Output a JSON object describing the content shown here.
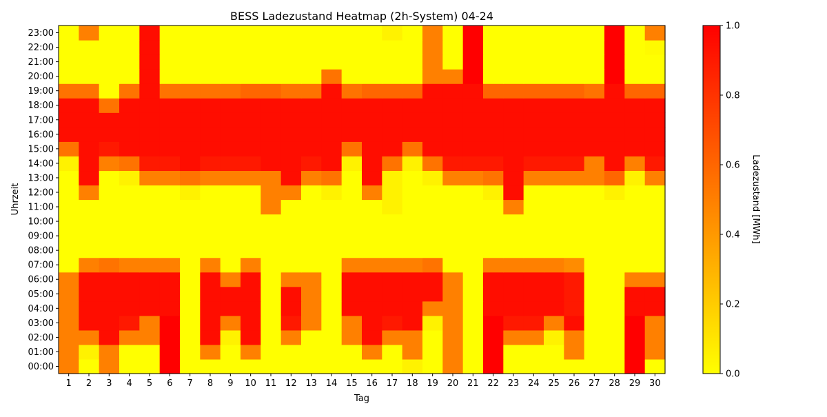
{
  "chart_data": {
    "type": "heatmap",
    "title": "BESS Ladezustand Heatmap (2h-System) 04-24",
    "xlabel": "Tag",
    "ylabel": "Uhrzeit",
    "colorbar_label": "Ladezustand [MWh]",
    "x": [
      "1",
      "2",
      "3",
      "4",
      "5",
      "6",
      "7",
      "8",
      "9",
      "10",
      "11",
      "12",
      "13",
      "14",
      "15",
      "16",
      "17",
      "18",
      "19",
      "20",
      "21",
      "22",
      "23",
      "24",
      "25",
      "26",
      "27",
      "28",
      "29",
      "30"
    ],
    "y": [
      "00:00",
      "01:00",
      "02:00",
      "03:00",
      "04:00",
      "05:00",
      "06:00",
      "07:00",
      "08:00",
      "09:00",
      "10:00",
      "11:00",
      "12:00",
      "13:00",
      "14:00",
      "15:00",
      "16:00",
      "17:00",
      "18:00",
      "19:00",
      "20:00",
      "21:00",
      "22:00",
      "23:00"
    ],
    "zlim": [
      0,
      1
    ],
    "colorbar_ticks": [
      "0.0",
      "0.2",
      "0.4",
      "0.6",
      "0.8",
      "1.0"
    ],
    "colormap": [
      "#ffff00",
      "#ff0000"
    ],
    "z": [
      [
        0.5,
        0.0,
        0.5,
        0.0,
        0.0,
        1.0,
        0.0,
        0.0,
        0.0,
        0.0,
        0.0,
        0.0,
        0.0,
        0.0,
        0.0,
        0.0,
        0.0,
        0.05,
        0.0,
        0.5,
        0.0,
        1.0,
        0.0,
        0.0,
        0.0,
        0.0,
        0.0,
        0.0,
        1.0,
        0.0
      ],
      [
        0.5,
        0.05,
        0.5,
        0.0,
        0.0,
        1.0,
        0.0,
        0.5,
        0.0,
        0.5,
        0.0,
        0.0,
        0.0,
        0.0,
        0.0,
        0.5,
        0.0,
        0.5,
        0.0,
        0.5,
        0.0,
        1.0,
        0.0,
        0.0,
        0.0,
        0.5,
        0.0,
        0.0,
        1.0,
        0.5
      ],
      [
        0.5,
        0.5,
        0.95,
        0.5,
        0.5,
        1.0,
        0.0,
        0.95,
        0.05,
        0.95,
        0.0,
        0.5,
        0.0,
        0.0,
        0.5,
        0.95,
        0.5,
        0.5,
        0.0,
        0.5,
        0.0,
        1.0,
        0.5,
        0.5,
        0.05,
        0.5,
        0.0,
        0.0,
        1.0,
        0.5
      ],
      [
        0.5,
        0.95,
        0.95,
        0.9,
        0.5,
        1.0,
        0.0,
        0.95,
        0.5,
        0.95,
        0.0,
        0.9,
        0.5,
        0.0,
        0.5,
        0.95,
        0.9,
        0.95,
        0.05,
        0.5,
        0.0,
        1.0,
        0.9,
        0.9,
        0.5,
        0.95,
        0.0,
        0.0,
        1.0,
        0.5
      ],
      [
        0.5,
        0.95,
        0.95,
        0.95,
        0.95,
        0.95,
        0.0,
        0.95,
        0.95,
        0.95,
        0.0,
        0.95,
        0.5,
        0.0,
        0.95,
        0.95,
        0.95,
        0.95,
        0.5,
        0.5,
        0.0,
        0.95,
        0.95,
        0.95,
        0.95,
        0.9,
        0.0,
        0.0,
        0.95,
        0.95
      ],
      [
        0.5,
        0.95,
        0.95,
        0.95,
        0.95,
        0.95,
        0.0,
        0.95,
        0.95,
        0.95,
        0.0,
        0.95,
        0.5,
        0.0,
        0.95,
        0.95,
        0.95,
        0.95,
        0.95,
        0.5,
        0.0,
        0.95,
        0.95,
        0.95,
        0.95,
        0.9,
        0.0,
        0.0,
        0.95,
        0.95
      ],
      [
        0.5,
        0.95,
        0.95,
        0.95,
        0.95,
        0.95,
        0.0,
        0.95,
        0.5,
        0.95,
        0.0,
        0.5,
        0.5,
        0.0,
        0.95,
        0.95,
        0.95,
        0.95,
        0.95,
        0.5,
        0.0,
        0.95,
        0.95,
        0.95,
        0.95,
        0.9,
        0.0,
        0.0,
        0.5,
        0.5
      ],
      [
        0.0,
        0.5,
        0.55,
        0.5,
        0.5,
        0.5,
        0.0,
        0.5,
        0.0,
        0.5,
        0.0,
        0.0,
        0.0,
        0.0,
        0.5,
        0.5,
        0.5,
        0.5,
        0.55,
        0.0,
        0.0,
        0.5,
        0.5,
        0.5,
        0.5,
        0.45,
        0.0,
        0.0,
        0.0,
        0.0
      ],
      [
        0.0,
        0.0,
        0.0,
        0.0,
        0.0,
        0.0,
        0.0,
        0.0,
        0.0,
        0.0,
        0.0,
        0.0,
        0.0,
        0.0,
        0.0,
        0.0,
        0.0,
        0.0,
        0.0,
        0.0,
        0.0,
        0.0,
        0.0,
        0.0,
        0.0,
        0.0,
        0.0,
        0.0,
        0.0,
        0.0
      ],
      [
        0.0,
        0.0,
        0.0,
        0.0,
        0.0,
        0.0,
        0.0,
        0.0,
        0.0,
        0.0,
        0.0,
        0.0,
        0.0,
        0.0,
        0.0,
        0.0,
        0.0,
        0.0,
        0.0,
        0.0,
        0.0,
        0.0,
        0.0,
        0.0,
        0.0,
        0.0,
        0.0,
        0.0,
        0.0,
        0.0
      ],
      [
        0.0,
        0.0,
        0.0,
        0.0,
        0.0,
        0.0,
        0.0,
        0.0,
        0.0,
        0.0,
        0.0,
        0.0,
        0.0,
        0.0,
        0.0,
        0.0,
        0.0,
        0.0,
        0.0,
        0.0,
        0.0,
        0.0,
        0.0,
        0.0,
        0.0,
        0.0,
        0.0,
        0.0,
        0.0,
        0.0
      ],
      [
        0.0,
        0.0,
        0.0,
        0.0,
        0.0,
        0.0,
        0.0,
        0.0,
        0.0,
        0.0,
        0.5,
        0.0,
        0.0,
        0.0,
        0.0,
        0.0,
        0.05,
        0.0,
        0.0,
        0.0,
        0.0,
        0.0,
        0.5,
        0.0,
        0.0,
        0.0,
        0.0,
        0.0,
        0.0,
        0.0
      ],
      [
        0.0,
        0.5,
        0.0,
        0.0,
        0.0,
        0.0,
        0.05,
        0.0,
        0.0,
        0.0,
        0.5,
        0.5,
        0.0,
        0.05,
        0.0,
        0.5,
        0.05,
        0.0,
        0.0,
        0.0,
        0.0,
        0.05,
        0.95,
        0.0,
        0.0,
        0.0,
        0.0,
        0.05,
        0.0,
        0.0
      ],
      [
        0.0,
        0.95,
        0.0,
        0.05,
        0.5,
        0.5,
        0.55,
        0.5,
        0.5,
        0.5,
        0.5,
        0.95,
        0.5,
        0.55,
        0.0,
        0.95,
        0.05,
        0.0,
        0.05,
        0.5,
        0.5,
        0.55,
        0.95,
        0.5,
        0.5,
        0.5,
        0.5,
        0.6,
        0.05,
        0.5
      ],
      [
        0.05,
        0.95,
        0.5,
        0.55,
        0.9,
        0.9,
        0.95,
        0.9,
        0.9,
        0.9,
        0.95,
        0.95,
        0.9,
        0.95,
        0.05,
        0.95,
        0.55,
        0.05,
        0.55,
        0.9,
        0.9,
        0.9,
        0.95,
        0.9,
        0.9,
        0.9,
        0.5,
        0.95,
        0.5,
        0.9
      ],
      [
        0.55,
        0.95,
        0.9,
        0.95,
        0.95,
        0.95,
        0.95,
        0.95,
        0.95,
        0.95,
        0.95,
        0.95,
        0.95,
        0.95,
        0.55,
        0.95,
        0.95,
        0.55,
        0.95,
        0.95,
        0.95,
        0.95,
        0.95,
        0.95,
        0.95,
        0.95,
        0.95,
        0.95,
        0.95,
        0.95
      ],
      [
        0.95,
        0.95,
        0.95,
        0.95,
        0.95,
        0.95,
        0.95,
        0.95,
        0.95,
        0.95,
        0.95,
        0.95,
        0.95,
        0.95,
        0.95,
        0.95,
        0.95,
        0.95,
        0.95,
        0.95,
        0.95,
        0.95,
        0.95,
        0.95,
        0.95,
        0.95,
        0.95,
        0.95,
        0.95,
        0.95
      ],
      [
        0.95,
        0.95,
        0.95,
        0.95,
        0.95,
        0.95,
        0.95,
        0.95,
        0.95,
        0.95,
        0.95,
        0.95,
        0.95,
        0.95,
        0.95,
        0.95,
        0.95,
        0.95,
        0.95,
        0.95,
        0.95,
        0.95,
        0.95,
        0.95,
        0.95,
        0.95,
        0.95,
        0.95,
        0.95,
        0.95
      ],
      [
        0.95,
        0.95,
        0.55,
        0.95,
        0.95,
        0.95,
        0.95,
        0.95,
        0.95,
        0.95,
        0.95,
        0.95,
        0.95,
        0.95,
        0.95,
        0.95,
        0.95,
        0.95,
        0.95,
        0.95,
        0.95,
        0.95,
        0.95,
        0.95,
        0.95,
        0.95,
        0.95,
        0.95,
        0.95,
        0.95
      ],
      [
        0.55,
        0.55,
        0.0,
        0.55,
        0.95,
        0.55,
        0.55,
        0.55,
        0.55,
        0.6,
        0.6,
        0.55,
        0.55,
        0.95,
        0.55,
        0.6,
        0.6,
        0.6,
        0.95,
        0.95,
        0.95,
        0.6,
        0.6,
        0.6,
        0.6,
        0.6,
        0.55,
        0.95,
        0.6,
        0.6
      ],
      [
        0.0,
        0.0,
        0.0,
        0.0,
        0.95,
        0.0,
        0.0,
        0.0,
        0.0,
        0.0,
        0.0,
        0.0,
        0.0,
        0.55,
        0.0,
        0.0,
        0.0,
        0.0,
        0.5,
        0.5,
        1.0,
        0.0,
        0.0,
        0.0,
        0.0,
        0.0,
        0.0,
        1.0,
        0.0,
        0.0
      ],
      [
        0.0,
        0.0,
        0.0,
        0.0,
        0.95,
        0.0,
        0.0,
        0.0,
        0.0,
        0.0,
        0.0,
        0.0,
        0.0,
        0.0,
        0.0,
        0.0,
        0.0,
        0.0,
        0.5,
        0.0,
        1.0,
        0.0,
        0.0,
        0.0,
        0.0,
        0.0,
        0.0,
        1.0,
        0.0,
        0.0
      ],
      [
        0.0,
        0.0,
        0.0,
        0.0,
        0.95,
        0.0,
        0.0,
        0.0,
        0.0,
        0.0,
        0.0,
        0.0,
        0.0,
        0.0,
        0.0,
        0.0,
        0.0,
        0.0,
        0.5,
        0.0,
        1.0,
        0.0,
        0.0,
        0.0,
        0.0,
        0.0,
        0.0,
        1.0,
        0.0,
        0.02
      ],
      [
        0.0,
        0.5,
        0.0,
        0.0,
        0.95,
        0.0,
        0.0,
        0.0,
        0.0,
        0.0,
        0.0,
        0.0,
        0.0,
        0.0,
        0.0,
        0.0,
        0.05,
        0.0,
        0.5,
        0.0,
        1.0,
        0.0,
        0.0,
        0.0,
        0.0,
        0.0,
        0.0,
        1.0,
        0.0,
        0.5
      ]
    ]
  }
}
